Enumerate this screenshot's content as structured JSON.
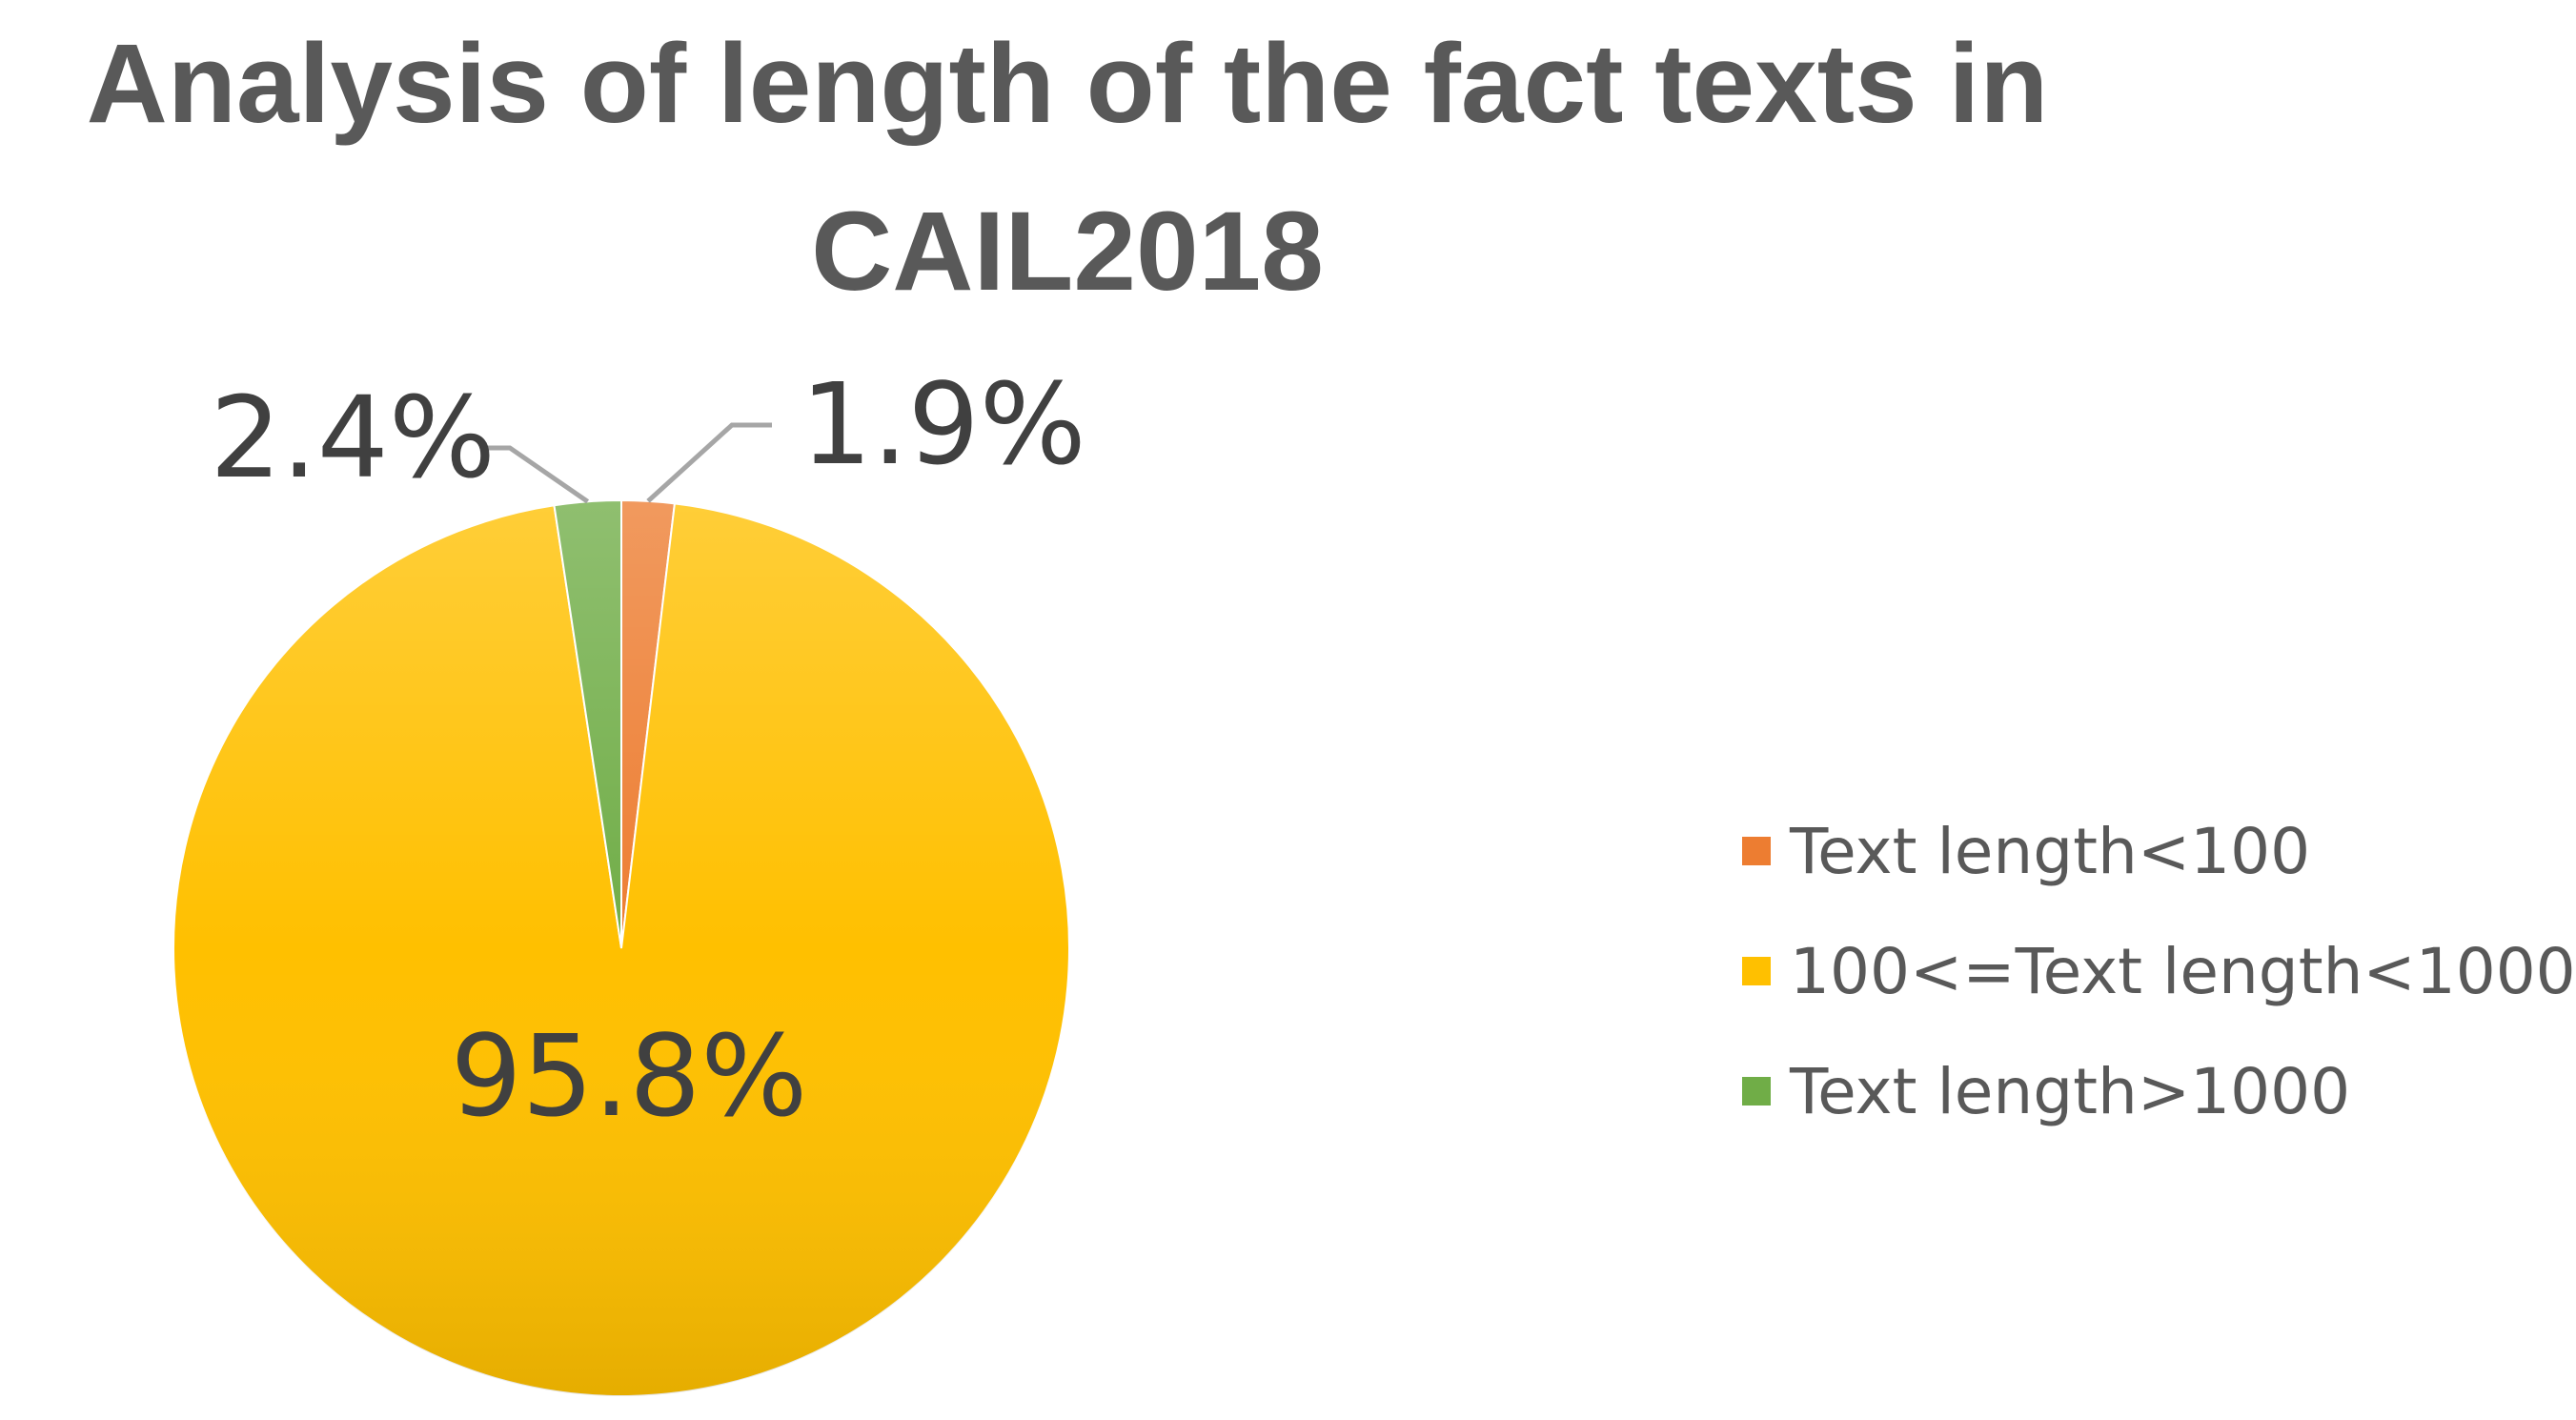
{
  "chart_data": {
    "type": "pie",
    "title": "Analysis of length of the fact texts in CAIL2018",
    "slices": [
      {
        "label": "Text length<100",
        "value": 1.9,
        "display": "1.9%",
        "color": "#ED7D31"
      },
      {
        "label": "100<=Text length<1000",
        "value": 95.8,
        "display": "95.8%",
        "color": "#FFC000"
      },
      {
        "label": "Text length>1000",
        "value": 2.4,
        "display": "2.4%",
        "color": "#70AD47"
      }
    ],
    "legend_position": "right",
    "leader_line_color": "#A6A6A6",
    "label_color": "#404040"
  }
}
